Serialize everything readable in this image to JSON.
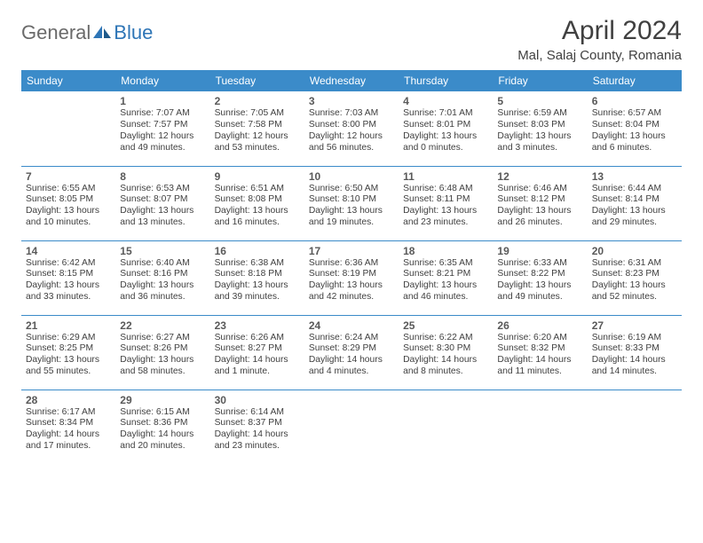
{
  "logo": {
    "general": "General",
    "blue": "Blue"
  },
  "title": "April 2024",
  "location": "Mal, Salaj County, Romania",
  "colors": {
    "header_bg": "#3b8bc9",
    "header_text": "#ffffff",
    "border": "#3b8bc9",
    "daynum": "#595959",
    "detail": "#404040",
    "title": "#404040",
    "logo_gray": "#6a6a6a",
    "logo_blue": "#2e75b6"
  },
  "weekdays": [
    "Sunday",
    "Monday",
    "Tuesday",
    "Wednesday",
    "Thursday",
    "Friday",
    "Saturday"
  ],
  "days": [
    {
      "n": 1,
      "sr": "7:07 AM",
      "ss": "7:57 PM",
      "dl": "12 hours and 49 minutes."
    },
    {
      "n": 2,
      "sr": "7:05 AM",
      "ss": "7:58 PM",
      "dl": "12 hours and 53 minutes."
    },
    {
      "n": 3,
      "sr": "7:03 AM",
      "ss": "8:00 PM",
      "dl": "12 hours and 56 minutes."
    },
    {
      "n": 4,
      "sr": "7:01 AM",
      "ss": "8:01 PM",
      "dl": "13 hours and 0 minutes."
    },
    {
      "n": 5,
      "sr": "6:59 AM",
      "ss": "8:03 PM",
      "dl": "13 hours and 3 minutes."
    },
    {
      "n": 6,
      "sr": "6:57 AM",
      "ss": "8:04 PM",
      "dl": "13 hours and 6 minutes."
    },
    {
      "n": 7,
      "sr": "6:55 AM",
      "ss": "8:05 PM",
      "dl": "13 hours and 10 minutes."
    },
    {
      "n": 8,
      "sr": "6:53 AM",
      "ss": "8:07 PM",
      "dl": "13 hours and 13 minutes."
    },
    {
      "n": 9,
      "sr": "6:51 AM",
      "ss": "8:08 PM",
      "dl": "13 hours and 16 minutes."
    },
    {
      "n": 10,
      "sr": "6:50 AM",
      "ss": "8:10 PM",
      "dl": "13 hours and 19 minutes."
    },
    {
      "n": 11,
      "sr": "6:48 AM",
      "ss": "8:11 PM",
      "dl": "13 hours and 23 minutes."
    },
    {
      "n": 12,
      "sr": "6:46 AM",
      "ss": "8:12 PM",
      "dl": "13 hours and 26 minutes."
    },
    {
      "n": 13,
      "sr": "6:44 AM",
      "ss": "8:14 PM",
      "dl": "13 hours and 29 minutes."
    },
    {
      "n": 14,
      "sr": "6:42 AM",
      "ss": "8:15 PM",
      "dl": "13 hours and 33 minutes."
    },
    {
      "n": 15,
      "sr": "6:40 AM",
      "ss": "8:16 PM",
      "dl": "13 hours and 36 minutes."
    },
    {
      "n": 16,
      "sr": "6:38 AM",
      "ss": "8:18 PM",
      "dl": "13 hours and 39 minutes."
    },
    {
      "n": 17,
      "sr": "6:36 AM",
      "ss": "8:19 PM",
      "dl": "13 hours and 42 minutes."
    },
    {
      "n": 18,
      "sr": "6:35 AM",
      "ss": "8:21 PM",
      "dl": "13 hours and 46 minutes."
    },
    {
      "n": 19,
      "sr": "6:33 AM",
      "ss": "8:22 PM",
      "dl": "13 hours and 49 minutes."
    },
    {
      "n": 20,
      "sr": "6:31 AM",
      "ss": "8:23 PM",
      "dl": "13 hours and 52 minutes."
    },
    {
      "n": 21,
      "sr": "6:29 AM",
      "ss": "8:25 PM",
      "dl": "13 hours and 55 minutes."
    },
    {
      "n": 22,
      "sr": "6:27 AM",
      "ss": "8:26 PM",
      "dl": "13 hours and 58 minutes."
    },
    {
      "n": 23,
      "sr": "6:26 AM",
      "ss": "8:27 PM",
      "dl": "14 hours and 1 minute."
    },
    {
      "n": 24,
      "sr": "6:24 AM",
      "ss": "8:29 PM",
      "dl": "14 hours and 4 minutes."
    },
    {
      "n": 25,
      "sr": "6:22 AM",
      "ss": "8:30 PM",
      "dl": "14 hours and 8 minutes."
    },
    {
      "n": 26,
      "sr": "6:20 AM",
      "ss": "8:32 PM",
      "dl": "14 hours and 11 minutes."
    },
    {
      "n": 27,
      "sr": "6:19 AM",
      "ss": "8:33 PM",
      "dl": "14 hours and 14 minutes."
    },
    {
      "n": 28,
      "sr": "6:17 AM",
      "ss": "8:34 PM",
      "dl": "14 hours and 17 minutes."
    },
    {
      "n": 29,
      "sr": "6:15 AM",
      "ss": "8:36 PM",
      "dl": "14 hours and 20 minutes."
    },
    {
      "n": 30,
      "sr": "6:14 AM",
      "ss": "8:37 PM",
      "dl": "14 hours and 23 minutes."
    }
  ],
  "labels": {
    "sunrise": "Sunrise:",
    "sunset": "Sunset:",
    "daylight": "Daylight:"
  },
  "first_day_column": 1,
  "layout": {
    "cols": 7,
    "rows": 5
  }
}
